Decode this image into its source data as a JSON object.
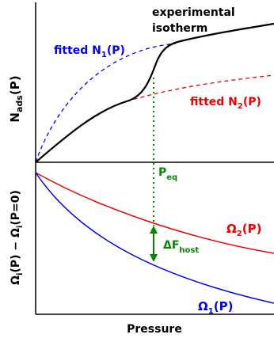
{
  "top_panel": {
    "y_axis_label": "N",
    "y_axis_label_sub": "ads",
    "y_axis_label_suffix": "(P)",
    "experimental_label_line1": "experimental",
    "experimental_label_line2": "isotherm",
    "fitted1_label": "fitted N",
    "fitted1_sub": "1",
    "fitted1_suffix": "(P)",
    "fitted2_label": "fitted N",
    "fitted2_sub": "2",
    "fitted2_suffix": "(P)",
    "peq_label": "P",
    "peq_sub": "eq"
  },
  "bottom_panel": {
    "y_axis_label": "Ω",
    "y_axis_label_sub1": "i",
    "y_axis_label_mid": "(P) − Ω",
    "y_axis_label_sub2": "i",
    "y_axis_label_suffix": "(P=0)",
    "omega2_label": "Ω",
    "omega2_sub": "2",
    "omega2_suffix": "(P)",
    "omega1_label": "Ω",
    "omega1_sub": "1",
    "omega1_suffix": "(P)",
    "delta_label": "ΔF",
    "delta_sub": "host",
    "x_axis_label": "Pressure"
  },
  "colors": {
    "experimental": "#000000",
    "fitted1": "#0000ee",
    "fitted2": "#ee0000",
    "peq": "#008800",
    "omega1": "#0000ee",
    "omega2": "#ee0000"
  }
}
